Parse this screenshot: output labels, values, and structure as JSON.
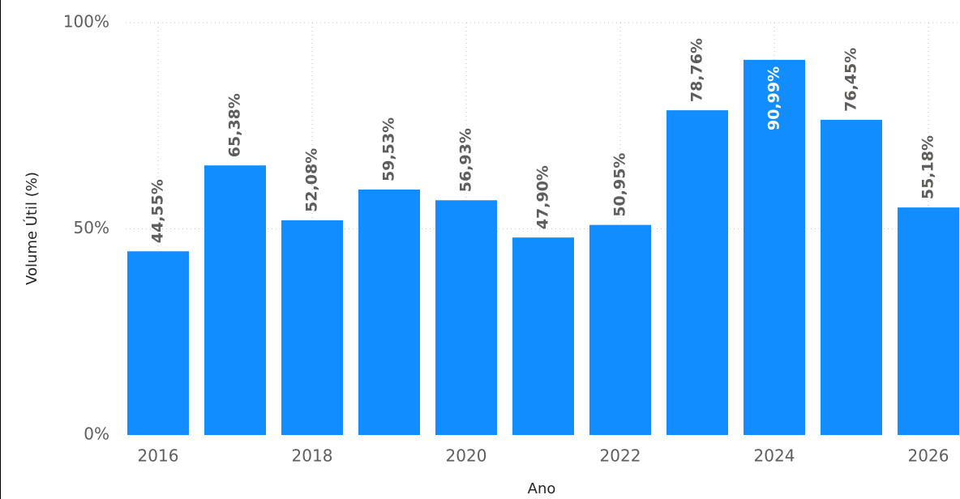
{
  "chart_data": {
    "type": "bar",
    "x_label": "Ano",
    "y_label": "Volume Útil (%)",
    "categories": [
      "2016",
      null,
      "2018",
      null,
      "2020",
      null,
      "2022",
      null,
      "2024",
      null,
      "2026"
    ],
    "values": [
      44.55,
      65.38,
      52.08,
      59.53,
      56.93,
      47.9,
      50.95,
      78.76,
      90.99,
      76.45,
      55.18
    ],
    "value_labels": [
      "44,55%",
      "65,38%",
      "52,08%",
      "59,53%",
      "56,93%",
      "47,90%",
      "50,95%",
      "78,76%",
      "90,99%",
      "76,45%",
      "55,18%"
    ],
    "color": "#118dff",
    "ylim": [
      0,
      100
    ],
    "yticks": [
      {
        "value": 0,
        "label": "0%"
      },
      {
        "value": 50,
        "label": "50%"
      },
      {
        "value": 100,
        "label": "100%"
      }
    ],
    "grid": true
  }
}
